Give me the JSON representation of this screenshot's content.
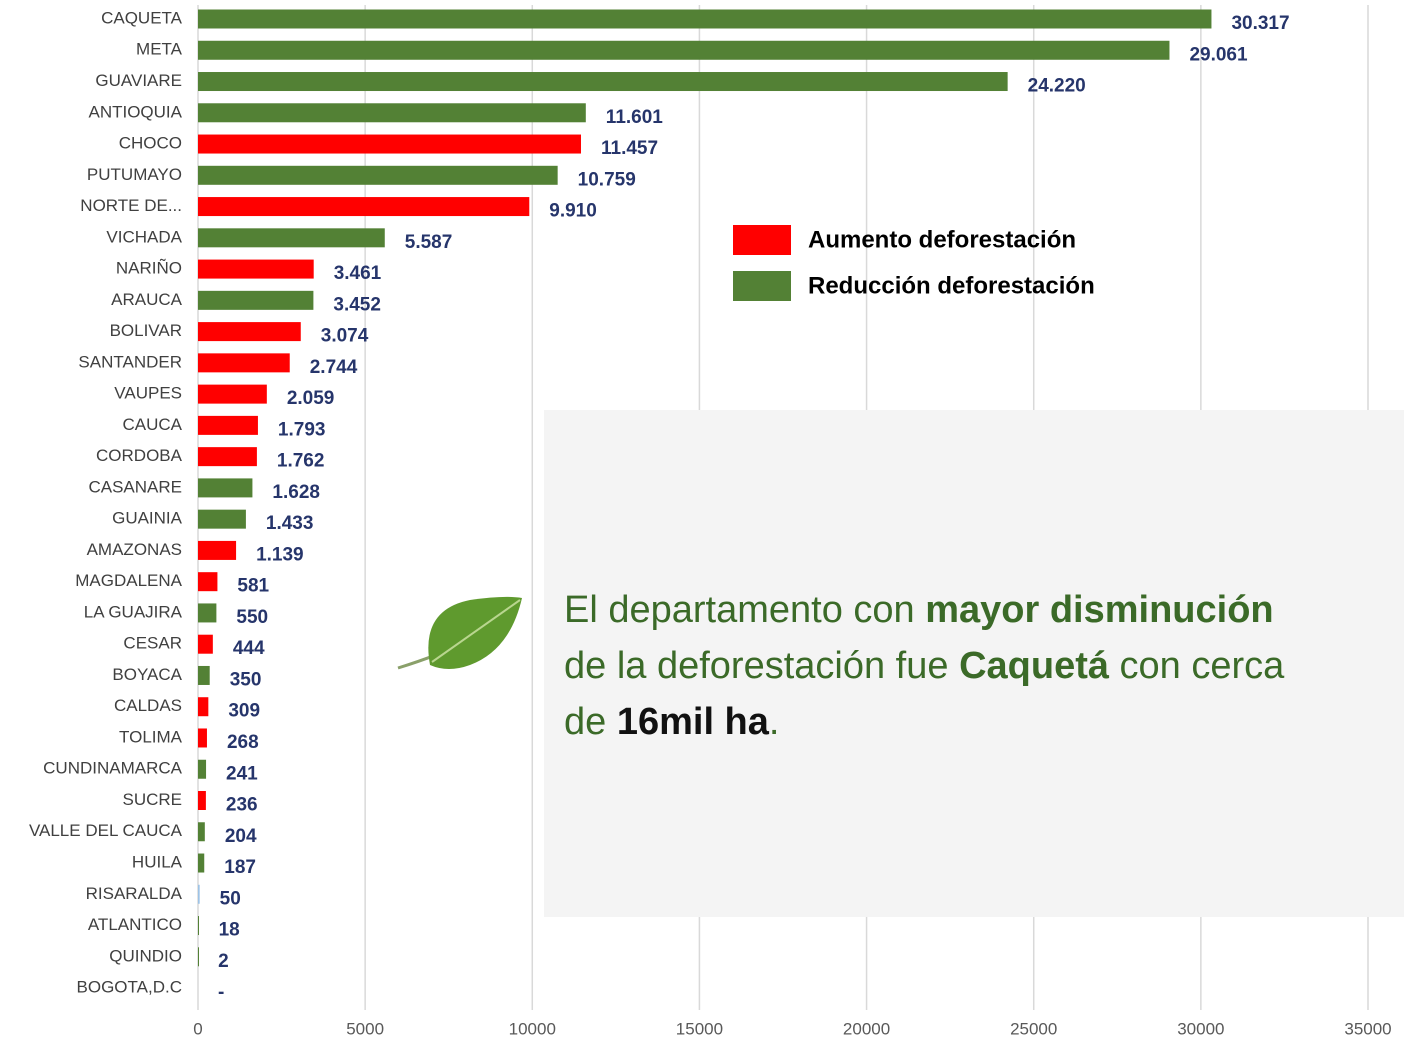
{
  "chart_data": {
    "type": "bar",
    "orientation": "horizontal",
    "categories": [
      "CAQUETA",
      "META",
      "GUAVIARE",
      "ANTIOQUIA",
      "CHOCO",
      "PUTUMAYO",
      "NORTE DE...",
      "VICHADA",
      "NARIÑO",
      "ARAUCA",
      "BOLIVAR",
      "SANTANDER",
      "VAUPES",
      "CAUCA",
      "CORDOBA",
      "CASANARE",
      "GUAINIA",
      "AMAZONAS",
      "MAGDALENA",
      "LA GUAJIRA",
      "CESAR",
      "BOYACA",
      "CALDAS",
      "TOLIMA",
      "CUNDINAMARCA",
      "SUCRE",
      "VALLE DEL CAUCA",
      "HUILA",
      "RISARALDA",
      "ATLANTICO",
      "QUINDIO",
      "BOGOTA,D.C"
    ],
    "values": [
      30317,
      29061,
      24220,
      11601,
      11457,
      10759,
      9910,
      5587,
      3461,
      3452,
      3074,
      2744,
      2059,
      1793,
      1762,
      1628,
      1433,
      1139,
      581,
      550,
      444,
      350,
      309,
      268,
      241,
      236,
      204,
      187,
      50,
      18,
      2,
      null
    ],
    "value_labels": [
      "30.317",
      "29.061",
      "24.220",
      "11.601",
      "11.457",
      "10.759",
      "9.910",
      "5.587",
      "3.461",
      "3.452",
      "3.074",
      "2.744",
      "2.059",
      "1.793",
      "1.762",
      "1.628",
      "1.433",
      "1.139",
      "581",
      "550",
      "444",
      "350",
      "309",
      "268",
      "241",
      "236",
      "204",
      "187",
      "50",
      "18",
      "2",
      "-"
    ],
    "colors": [
      "#538135",
      "#538135",
      "#538135",
      "#538135",
      "#ff0000",
      "#538135",
      "#ff0000",
      "#538135",
      "#ff0000",
      "#538135",
      "#ff0000",
      "#ff0000",
      "#ff0000",
      "#ff0000",
      "#ff0000",
      "#538135",
      "#538135",
      "#ff0000",
      "#ff0000",
      "#538135",
      "#ff0000",
      "#538135",
      "#ff0000",
      "#ff0000",
      "#538135",
      "#ff0000",
      "#538135",
      "#538135",
      "#9dc3e6",
      "#538135",
      "#538135",
      null
    ],
    "legend": [
      {
        "label": "Aumento deforestación",
        "color": "#ff0000"
      },
      {
        "label": "Reducción deforestación",
        "color": "#538135"
      }
    ],
    "xlim": [
      0,
      35000
    ],
    "xticks": [
      0,
      5000,
      10000,
      15000,
      20000,
      25000,
      30000,
      35000
    ],
    "grid": true,
    "annotation_lines": [
      [
        {
          "text": "El departamento con "
        },
        {
          "text": "mayor disminución",
          "bold": true
        }
      ],
      [
        {
          "text": "de la deforestación fue "
        },
        {
          "text": "Caquetá",
          "bold": true
        },
        {
          "text": " con cerca"
        }
      ],
      [
        {
          "text": "de "
        },
        {
          "text": "16mil ha",
          "bold": true,
          "color": "#111111"
        },
        {
          "text": "."
        }
      ]
    ]
  }
}
